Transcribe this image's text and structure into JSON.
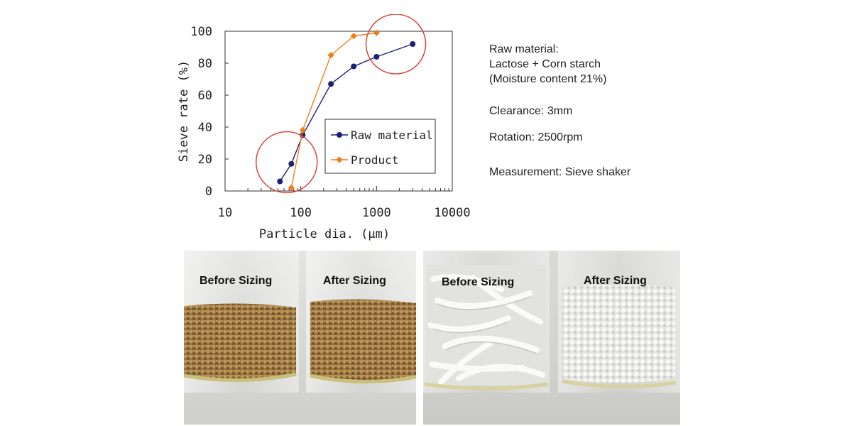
{
  "chart_data": {
    "type": "line",
    "xscale": "log",
    "xlim": [
      10,
      10000
    ],
    "ylim": [
      0,
      100
    ],
    "xticks": [
      "10",
      "100",
      "1000",
      "10000"
    ],
    "yticks": [
      "0",
      "20",
      "40",
      "60",
      "80",
      "100"
    ],
    "xlabel": "Particle dia. (μm)",
    "ylabel": "Sieve rate (%)",
    "legend_position": "inside-right",
    "series": [
      {
        "name": "Raw material",
        "color": "#1a1f7a",
        "marker": "circle",
        "x": [
          53,
          75,
          106,
          250,
          500,
          1000,
          3000
        ],
        "y": [
          6,
          17,
          35,
          67,
          78,
          84,
          92
        ]
      },
      {
        "name": "Product",
        "color": "#f07d1a",
        "marker": "diamond",
        "x": [
          75,
          106,
          250,
          500,
          1000
        ],
        "y": [
          2,
          38,
          85,
          97,
          99
        ]
      }
    ],
    "annotations": [
      {
        "type": "circle",
        "color": "#d9453c",
        "note": "highlight fine region",
        "cx": 65,
        "cy": 18
      },
      {
        "type": "circle",
        "color": "#d9453c",
        "note": "highlight coarse region",
        "cx": 1800,
        "cy": 92
      }
    ]
  },
  "info": {
    "raw_material_label": "Raw material:",
    "raw_material_value": "Lactose + Corn starch",
    "moisture": "(Moisture content 21%)",
    "clearance": "Clearance: 3mm",
    "rotation": "Rotation: 2500rpm",
    "measurement": "Measurement: Sieve shaker"
  },
  "photos": {
    "left": {
      "before_label": "Before Sizing",
      "after_label": "After Sizing"
    },
    "right": {
      "before_label": "Before Sizing",
      "after_label": "After Sizing"
    }
  }
}
